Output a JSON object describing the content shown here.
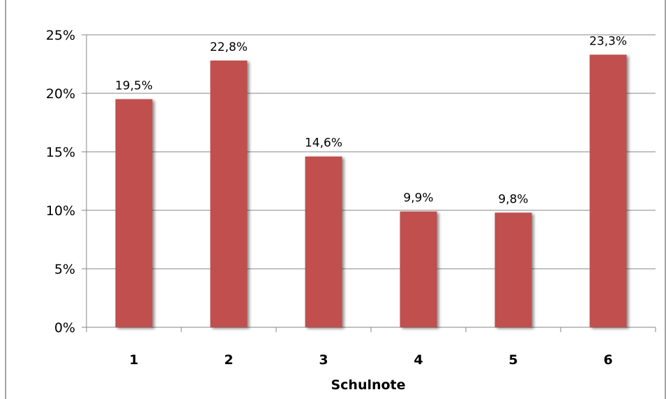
{
  "chart_data": {
    "type": "bar",
    "xlabel": "Schulnote",
    "ylabel": "",
    "categories": [
      "1",
      "2",
      "3",
      "4",
      "5",
      "6"
    ],
    "values": [
      19.5,
      22.8,
      14.6,
      9.9,
      9.8,
      23.3
    ],
    "value_labels": [
      "19,5%",
      "22,8%",
      "14,6%",
      "9,9%",
      "9,8%",
      "23,3%"
    ],
    "ylim": [
      0,
      25
    ],
    "yticks": [
      0,
      5,
      10,
      15,
      20,
      25
    ],
    "ytick_labels": [
      "0%",
      "5%",
      "10%",
      "15%",
      "20%",
      "25%"
    ],
    "grid": true,
    "bar_color": "#c0504d",
    "grid_color": "#868686"
  }
}
